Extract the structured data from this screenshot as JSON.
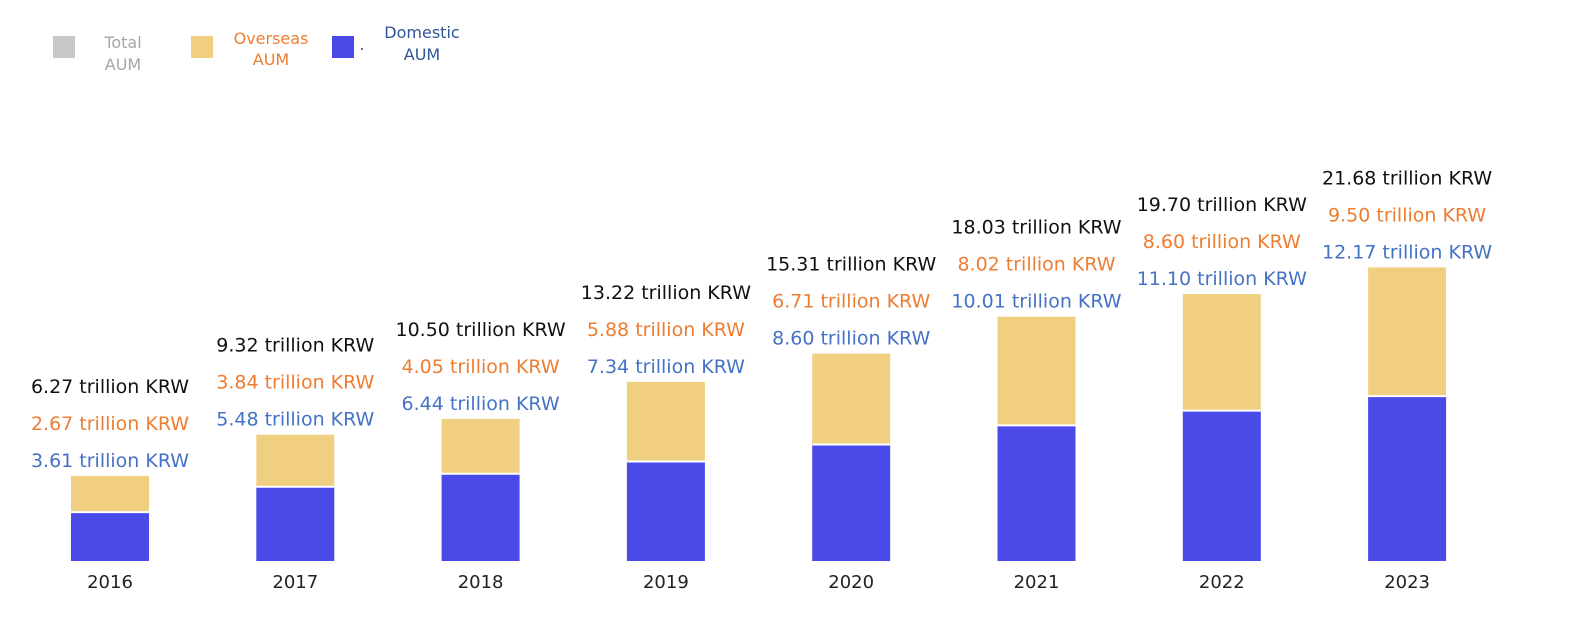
{
  "legend": {
    "total": {
      "line1": "Total",
      "line2": "AUM",
      "swatch": "#c8c8c8",
      "text_color": "#a6a6a6"
    },
    "overseas": {
      "line1": "Overseas",
      "line2": "AUM",
      "swatch": "#f0d080",
      "text_color": "#ed7d31"
    },
    "domestic": {
      "line1": "Domestic",
      "line2": "AUM",
      "swatch": "#4a4ae8",
      "text_color": "#2f5597",
      "dot": "."
    }
  },
  "colors": {
    "total_label": "#111111",
    "overseas_label": "#ed7d31",
    "domestic_label": "#4472c4",
    "overseas_bar": "#f0d080",
    "domestic_bar": "#4a4ae8"
  },
  "chart_data": {
    "type": "bar",
    "stacked": true,
    "categories": [
      "2016",
      "2017",
      "2018",
      "2019",
      "2020",
      "2021",
      "2022",
      "2023"
    ],
    "series": [
      {
        "name": "Domestic AUM",
        "values": [
          3.61,
          5.48,
          6.44,
          7.34,
          8.6,
          10.01,
          11.1,
          12.17
        ]
      },
      {
        "name": "Overseas AUM",
        "values": [
          2.67,
          3.84,
          4.05,
          5.88,
          6.71,
          8.02,
          8.6,
          9.5
        ]
      }
    ],
    "totals": [
      6.27,
      9.32,
      10.5,
      13.22,
      15.31,
      18.03,
      19.7,
      21.68
    ],
    "labels": {
      "total": [
        "6.27 trillion KRW",
        "9.32 trillion KRW",
        "10.50 trillion KRW",
        "13.22 trillion KRW",
        "15.31 trillion KRW",
        "18.03 trillion KRW",
        "19.70 trillion KRW",
        "21.68 trillion KRW"
      ],
      "overseas": [
        "2.67 trillion KRW",
        "3.84 trillion KRW",
        "4.05 trillion KRW",
        "5.88 trillion KRW",
        "6.71 trillion KRW",
        "8.02 trillion KRW",
        "8.60 trillion KRW",
        "9.50 trillion KRW"
      ],
      "domestic": [
        "3.61 trillion KRW",
        "5.48 trillion KRW",
        "6.44 trillion KRW",
        "7.34 trillion KRW",
        "8.60 trillion KRW",
        "10.01 trillion KRW",
        "11.10 trillion KRW",
        "12.17 trillion KRW"
      ]
    },
    "title": "",
    "xlabel": "",
    "ylabel": "",
    "grid": false,
    "legend_position": "top-left"
  }
}
